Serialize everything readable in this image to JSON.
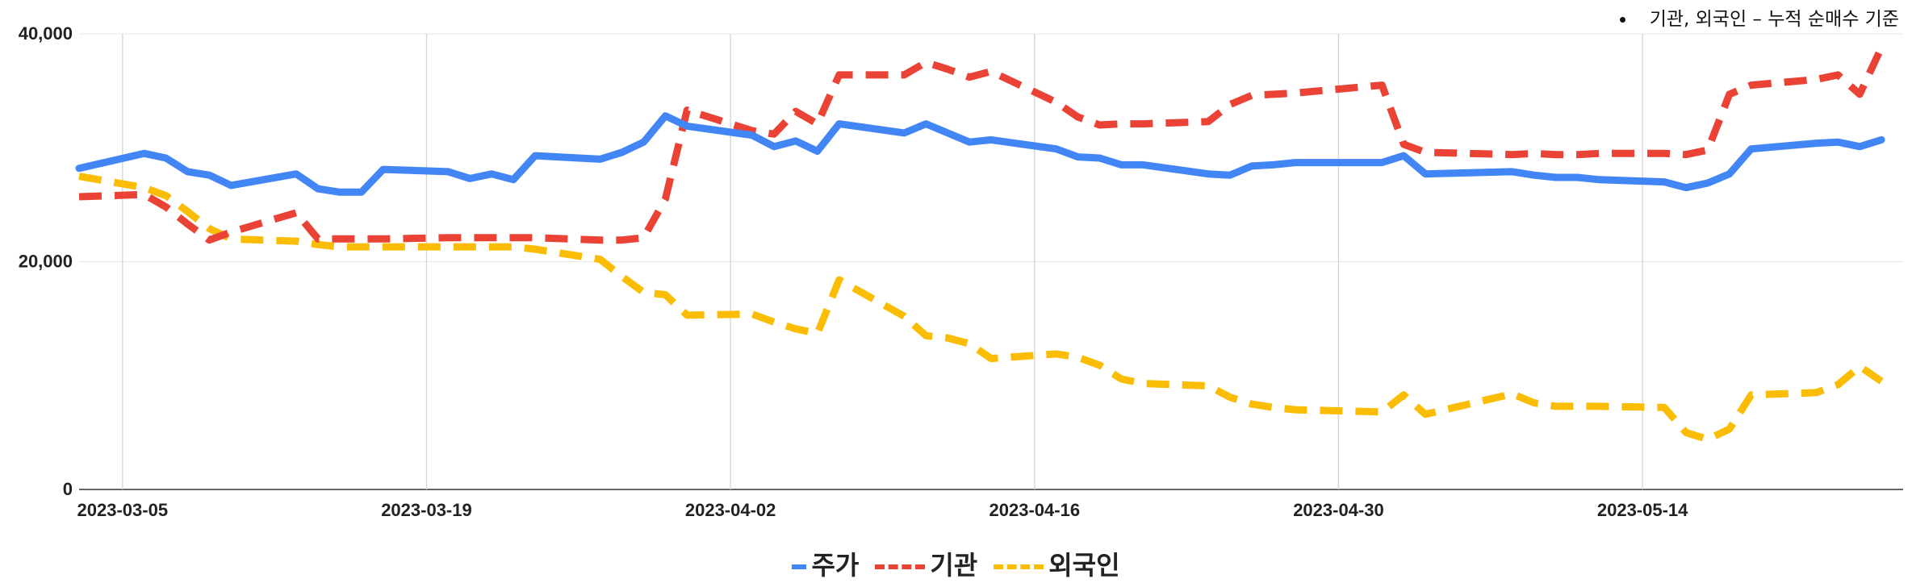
{
  "annotation": "기관, 외국인 – 누적 순매수 기준",
  "chart_data": {
    "type": "line",
    "ylim": [
      0,
      40000
    ],
    "yticks": [
      0,
      20000,
      40000
    ],
    "ytick_labels": [
      "0",
      "20,000",
      "40,000"
    ],
    "xticks": [
      "2023-03-05",
      "2023-03-19",
      "2023-04-02",
      "2023-04-16",
      "2023-04-30",
      "2023-05-14"
    ],
    "x": [
      "2023-03-03",
      "2023-03-06",
      "2023-03-07",
      "2023-03-08",
      "2023-03-09",
      "2023-03-10",
      "2023-03-13",
      "2023-03-14",
      "2023-03-15",
      "2023-03-16",
      "2023-03-17",
      "2023-03-20",
      "2023-03-21",
      "2023-03-22",
      "2023-03-23",
      "2023-03-24",
      "2023-03-27",
      "2023-03-28",
      "2023-03-29",
      "2023-03-30",
      "2023-03-31",
      "2023-04-03",
      "2023-04-04",
      "2023-04-05",
      "2023-04-06",
      "2023-04-07",
      "2023-04-10",
      "2023-04-11",
      "2023-04-12",
      "2023-04-13",
      "2023-04-14",
      "2023-04-17",
      "2023-04-18",
      "2023-04-19",
      "2023-04-20",
      "2023-04-21",
      "2023-04-24",
      "2023-04-25",
      "2023-04-26",
      "2023-04-27",
      "2023-04-28",
      "2023-05-02",
      "2023-05-03",
      "2023-05-04",
      "2023-05-08",
      "2023-05-09",
      "2023-05-10",
      "2023-05-11",
      "2023-05-12",
      "2023-05-15",
      "2023-05-16",
      "2023-05-17",
      "2023-05-18",
      "2023-05-19",
      "2023-05-22",
      "2023-05-23",
      "2023-05-24",
      "2023-05-25"
    ],
    "series": [
      {
        "name": "주가",
        "color": "#4285F4",
        "dash": "solid",
        "values": [
          28200,
          29500,
          29100,
          27900,
          27600,
          26700,
          27700,
          26400,
          26100,
          26100,
          28100,
          27900,
          27300,
          27700,
          27200,
          29300,
          29000,
          29600,
          30500,
          32800,
          31900,
          31100,
          30100,
          30600,
          29700,
          32100,
          31300,
          32100,
          31300,
          30500,
          30700,
          29900,
          29200,
          29100,
          28500,
          28500,
          27700,
          27600,
          28400,
          28500,
          28700,
          28700,
          29300,
          27700,
          27900,
          27600,
          27400,
          27400,
          27200,
          27000,
          26500,
          26900,
          27700,
          29900,
          30400,
          30500,
          30100,
          30700
        ]
      },
      {
        "name": "기관",
        "color": "#EA4335",
        "dash": "dashed",
        "values": [
          25700,
          25900,
          24800,
          23300,
          21900,
          22600,
          24300,
          22000,
          22000,
          22000,
          22000,
          22100,
          22100,
          22100,
          22100,
          22100,
          21900,
          21900,
          22100,
          25500,
          33300,
          31500,
          31200,
          33200,
          32100,
          36400,
          36400,
          37500,
          36900,
          36200,
          36700,
          34000,
          32700,
          32000,
          32100,
          32100,
          32300,
          33800,
          34600,
          34700,
          34800,
          35500,
          30300,
          29600,
          29400,
          29500,
          29400,
          29400,
          29500,
          29500,
          29400,
          29800,
          34700,
          35500,
          36000,
          36400,
          34700,
          38800
        ]
      },
      {
        "name": "외국인",
        "color": "#FBBC04",
        "dash": "dashed",
        "values": [
          27500,
          26500,
          25800,
          24400,
          22900,
          22000,
          21800,
          21500,
          21300,
          21300,
          21300,
          21300,
          21300,
          21300,
          21300,
          21100,
          20200,
          18700,
          17300,
          17100,
          15300,
          15400,
          14700,
          14100,
          13700,
          18400,
          15200,
          13500,
          13300,
          12800,
          11500,
          11900,
          11600,
          10900,
          9700,
          9300,
          9100,
          8100,
          7500,
          7200,
          7000,
          6800,
          8300,
          6600,
          8400,
          7600,
          7300,
          7300,
          7300,
          7200,
          5000,
          4400,
          5300,
          8300,
          8500,
          9200,
          10800,
          9500
        ]
      }
    ]
  }
}
